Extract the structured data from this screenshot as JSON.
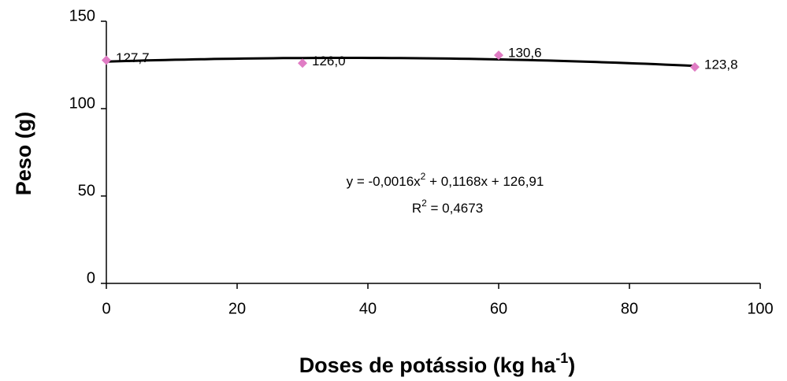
{
  "chart_data": {
    "type": "scatter",
    "x": [
      0,
      30,
      60,
      90
    ],
    "values": [
      127.7,
      126.0,
      130.6,
      123.8
    ],
    "value_labels": [
      "127,7",
      "126,0",
      "130,6",
      "123,8"
    ],
    "color": "#e07cc4",
    "xlim": [
      0,
      100
    ],
    "xticks": [
      0,
      20,
      40,
      60,
      80,
      100
    ],
    "ylim": [
      0,
      150
    ],
    "yticks": [
      0,
      50,
      100,
      150
    ],
    "ylabel": "Peso (g)",
    "xlabel": "Doses de potássio (kg ha",
    "xlabel_sup": "-1",
    "xlabel_end": ")",
    "trendline": {
      "color": "#000000",
      "coefficients": [
        -0.0016,
        0.1168,
        126.91
      ]
    },
    "equation": "y = -0,0016x",
    "equation_sup": "2",
    "equation_end": " + 0,1168x + 126,91",
    "r2": "R",
    "r2_sup": "2",
    "r2_end": " = 0,4673"
  }
}
